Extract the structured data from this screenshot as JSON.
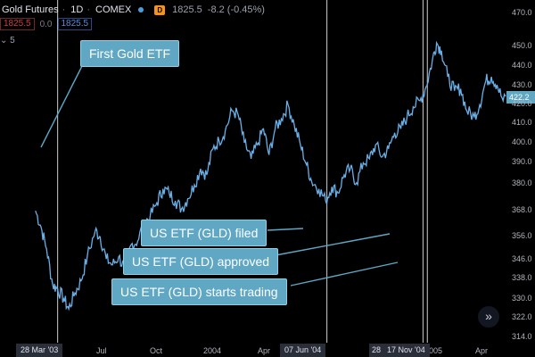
{
  "header": {
    "symbol": "Gold Futures",
    "interval": "1D",
    "exchange": "COMEX",
    "badge": "D",
    "last": "1825.5",
    "change": "-8.2 (-0.45%)",
    "bid": "1825.5",
    "spread": "0.0",
    "ask": "1825.5",
    "indicators_toggle": "⌄ 5"
  },
  "price_tag": "422.2",
  "nav_button": "»",
  "callouts": [
    {
      "text": "First Gold ETF"
    },
    {
      "text": "US ETF (GLD) filed"
    },
    {
      "text": "US ETF (GLD) approved"
    },
    {
      "text": "US ETF (GLD) starts trading"
    }
  ],
  "date_tags": [
    "28 Mar '03",
    "07 Jun '04",
    "28",
    "17 Nov '04"
  ],
  "colors": {
    "line": "#6ab0e8",
    "callout": "#5fa7c3",
    "background": "#000000",
    "vline": "#cfcfcf"
  },
  "chart_data": {
    "type": "line",
    "x_tick_labels": [
      "Jul",
      "Oct",
      "2004",
      "Apr",
      "2005",
      "Apr"
    ],
    "y_tick_labels": [
      "314.0",
      "322.0",
      "330.0",
      "338.0",
      "346.0",
      "356.0",
      "368.0",
      "380.0",
      "390.0",
      "400.0",
      "410.0",
      "420.0",
      "430.0",
      "440.0",
      "450.0",
      "470.0"
    ],
    "ylim": [
      310,
      475
    ],
    "xlim": [
      "2003-03-01",
      "2005-05-31"
    ],
    "event_dates": [
      "2003-03-28",
      "2004-06-07",
      "2004-11-10",
      "2004-11-17"
    ],
    "series": [
      {
        "x": [
          "2003-02-20",
          "2003-03-01",
          "2003-03-10",
          "2003-03-20",
          "2003-03-28",
          "2003-04-07",
          "2003-04-15",
          "2003-04-25",
          "2003-05-05",
          "2003-05-15",
          "2003-05-28",
          "2003-06-05",
          "2003-06-15",
          "2003-06-25",
          "2003-07-05",
          "2003-07-15",
          "2003-07-25",
          "2003-08-05",
          "2003-08-15",
          "2003-08-25",
          "2003-09-05",
          "2003-09-15",
          "2003-09-25",
          "2003-10-05",
          "2003-10-15",
          "2003-10-25",
          "2003-11-05",
          "2003-11-15",
          "2003-11-25",
          "2003-12-05",
          "2003-12-15",
          "2003-12-25",
          "2004-01-05",
          "2004-01-15",
          "2004-01-25",
          "2004-02-05",
          "2004-02-15",
          "2004-02-25",
          "2004-03-05",
          "2004-03-15",
          "2004-03-25",
          "2004-04-05",
          "2004-04-15",
          "2004-04-25",
          "2004-05-05",
          "2004-05-13",
          "2004-05-25",
          "2004-06-05",
          "2004-06-15",
          "2004-06-25",
          "2004-07-05",
          "2004-07-15",
          "2004-07-25",
          "2004-08-05",
          "2004-08-15",
          "2004-08-25",
          "2004-09-05",
          "2004-09-15",
          "2004-09-25",
          "2004-10-05",
          "2004-10-15",
          "2004-10-25",
          "2004-11-05",
          "2004-11-15",
          "2004-11-25",
          "2004-12-02",
          "2004-12-10",
          "2004-12-20",
          "2004-12-31",
          "2005-01-10",
          "2005-01-20",
          "2005-02-01",
          "2005-02-10",
          "2005-02-20",
          "2005-03-01",
          "2005-03-10",
          "2005-03-20",
          "2005-04-01",
          "2005-04-10",
          "2005-04-20",
          "2005-05-01",
          "2005-05-10",
          "2005-05-20"
        ],
        "y": [
          375,
          367,
          356,
          338,
          336,
          331,
          326,
          334,
          340,
          352,
          365,
          362,
          351,
          348,
          352,
          346,
          358,
          360,
          369,
          372,
          379,
          386,
          384,
          380,
          376,
          381,
          388,
          396,
          393,
          406,
          410,
          415,
          425,
          423,
          409,
          401,
          408,
          416,
          403,
          416,
          421,
          428,
          418,
          408,
          398,
          390,
          386,
          380,
          387,
          384,
          393,
          396,
          389,
          399,
          401,
          408,
          402,
          406,
          414,
          416,
          422,
          427,
          430,
          437,
          450,
          459,
          455,
          442,
          435,
          436,
          425,
          422,
          428,
          440,
          442,
          438,
          430,
          433,
          428,
          432,
          427,
          429,
          425
        ]
      }
    ]
  }
}
